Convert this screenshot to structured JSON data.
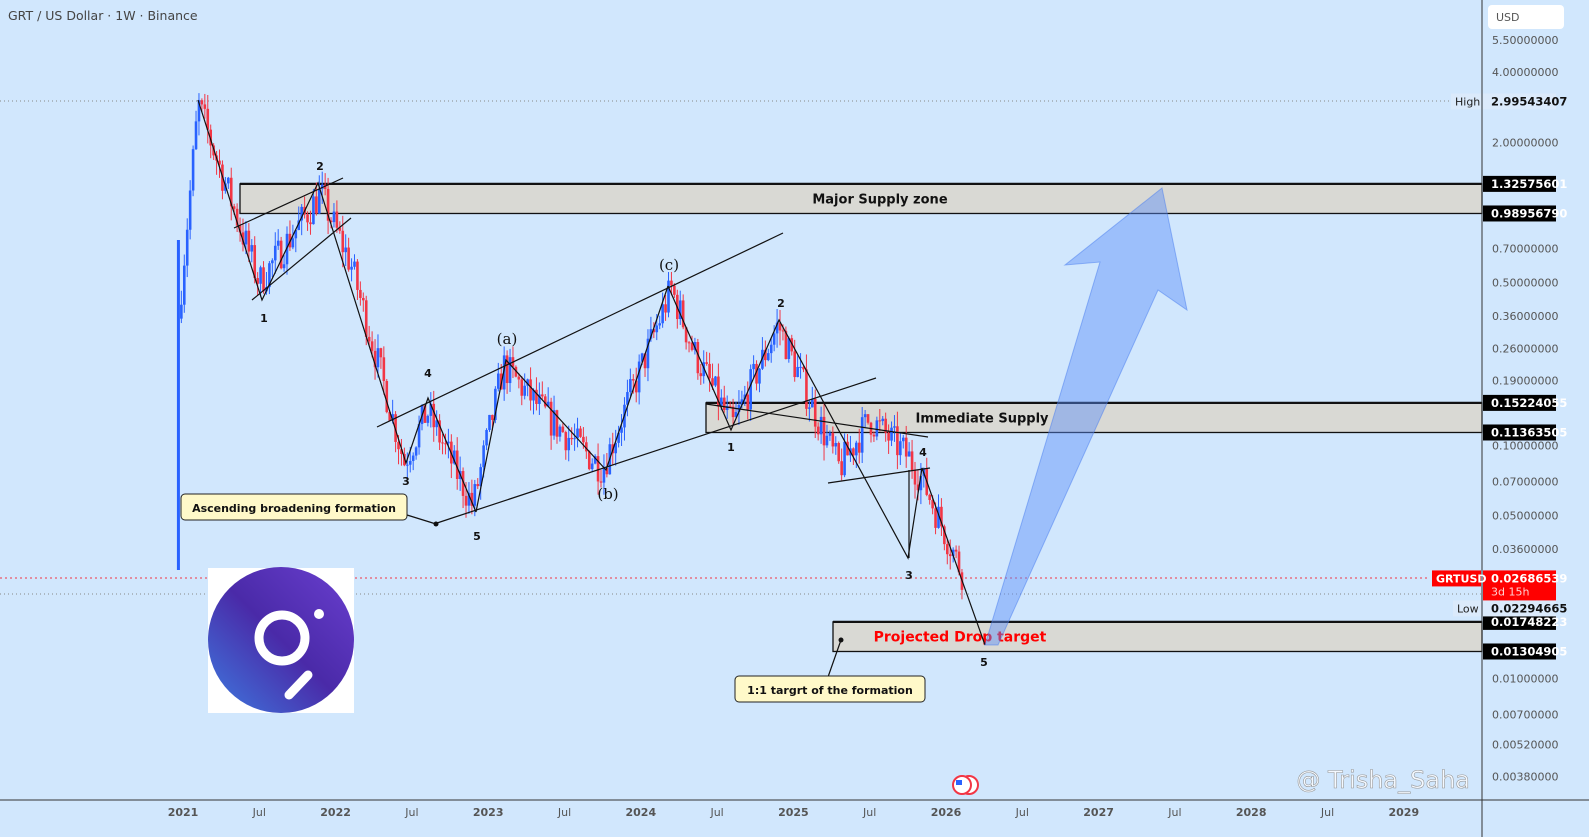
{
  "chart_data": {
    "type": "candlestick",
    "title": "GRT / US Dollar · 1W · Binance",
    "symbol": "GRTUSD",
    "currency": "USD",
    "scale": "log",
    "ylim": [
      0.0038,
      5.5
    ],
    "y_ticks": [
      "5.50000000",
      "4.00000000",
      "2.00000000",
      "0.70000000",
      "0.50000000",
      "0.36000000",
      "0.26000000",
      "0.19000000",
      "0.10000000",
      "0.07000000",
      "0.05000000",
      "0.03600000",
      "0.01000000",
      "0.00700000",
      "0.00520000",
      "0.00380000"
    ],
    "y_tick_values": [
      5.5,
      4,
      2,
      0.7,
      0.5,
      0.36,
      0.26,
      0.19,
      0.1,
      0.07,
      0.05,
      0.036,
      0.01,
      0.007,
      0.0052,
      0.0038
    ],
    "x_ticks": [
      {
        "label": "2021",
        "t": 2021
      },
      {
        "label": "Jul",
        "t": 2021.5
      },
      {
        "label": "2022",
        "t": 2022
      },
      {
        "label": "Jul",
        "t": 2022.5
      },
      {
        "label": "2023",
        "t": 2023
      },
      {
        "label": "Jul",
        "t": 2023.5
      },
      {
        "label": "2024",
        "t": 2024
      },
      {
        "label": "Jul",
        "t": 2024.5
      },
      {
        "label": "2025",
        "t": 2025
      },
      {
        "label": "Jul",
        "t": 2025.5
      },
      {
        "label": "2026",
        "t": 2026
      },
      {
        "label": "Jul",
        "t": 2026.5
      },
      {
        "label": "2027",
        "t": 2027
      },
      {
        "label": "Jul",
        "t": 2027.5
      },
      {
        "label": "2028",
        "t": 2028
      },
      {
        "label": "Jul",
        "t": 2028.5
      },
      {
        "label": "2029",
        "t": 2029
      },
      {
        "label": "Jul",
        "t": 2029.5
      }
    ],
    "price_pivots": [
      [
        2020.97,
        0.35
      ],
      [
        2021.1,
        2.9
      ],
      [
        2021.25,
        1.5
      ],
      [
        2021.5,
        0.5
      ],
      [
        2021.9,
        1.2
      ],
      [
        2022.1,
        0.6
      ],
      [
        2022.3,
        0.2
      ],
      [
        2022.45,
        0.085
      ],
      [
        2022.6,
        0.14
      ],
      [
        2022.9,
        0.055
      ],
      [
        2023.1,
        0.22
      ],
      [
        2023.4,
        0.13
      ],
      [
        2023.75,
        0.08
      ],
      [
        2024.2,
        0.47
      ],
      [
        2024.35,
        0.25
      ],
      [
        2024.6,
        0.12
      ],
      [
        2024.9,
        0.33
      ],
      [
        2025.1,
        0.16
      ],
      [
        2025.3,
        0.08
      ],
      [
        2025.5,
        0.13
      ],
      [
        2025.75,
        0.09
      ],
      [
        2025.85,
        0.07
      ],
      [
        2026.12,
        0.027
      ]
    ],
    "high": {
      "label": "High",
      "value": "2.99543407",
      "price": 2.99543407
    },
    "low": {
      "label": "Low",
      "value": "0.02294665",
      "price": 0.02294665
    },
    "last": {
      "label": "GRTUSD",
      "value": "0.02686539",
      "countdown": "3d 15h",
      "price": 0.02686539
    },
    "zones": [
      {
        "name": "Major Supply zone",
        "top": "1.32575601",
        "bottom": "0.98956790",
        "top_p": 1.32575601,
        "bottom_p": 0.9895679,
        "color": "#111111"
      },
      {
        "name": "Immediate Supply",
        "top": "0.15224055",
        "bottom": "0.11363505",
        "top_p": 0.15224055,
        "bottom_p": 0.11363505,
        "color": "#111111"
      },
      {
        "name": "Projected Drop target",
        "top": "0.01748223",
        "bottom": "0.01304905",
        "top_p": 0.01748223,
        "bottom_p": 0.01304905,
        "color": "#ff0000"
      }
    ],
    "annotations": {
      "pattern_label": "Ascending broadening formation",
      "target_label": "1:1 targrt of the formation",
      "waves": {
        "w1a": "1",
        "w2a": "2",
        "w3a": "3",
        "w4a": "4",
        "w5a": "5",
        "a": "(a)",
        "b": "(b)",
        "c": "(c)",
        "w1b": "1",
        "w2b": "2",
        "w3b": "3",
        "w4b": "4",
        "w5b": "5"
      }
    },
    "colors": {
      "up": "#2962ff",
      "down": "#f23645",
      "background": "#d1e7fd",
      "zone": "#d9d9d4"
    }
  },
  "watermark": "@ Trisha_Saha"
}
